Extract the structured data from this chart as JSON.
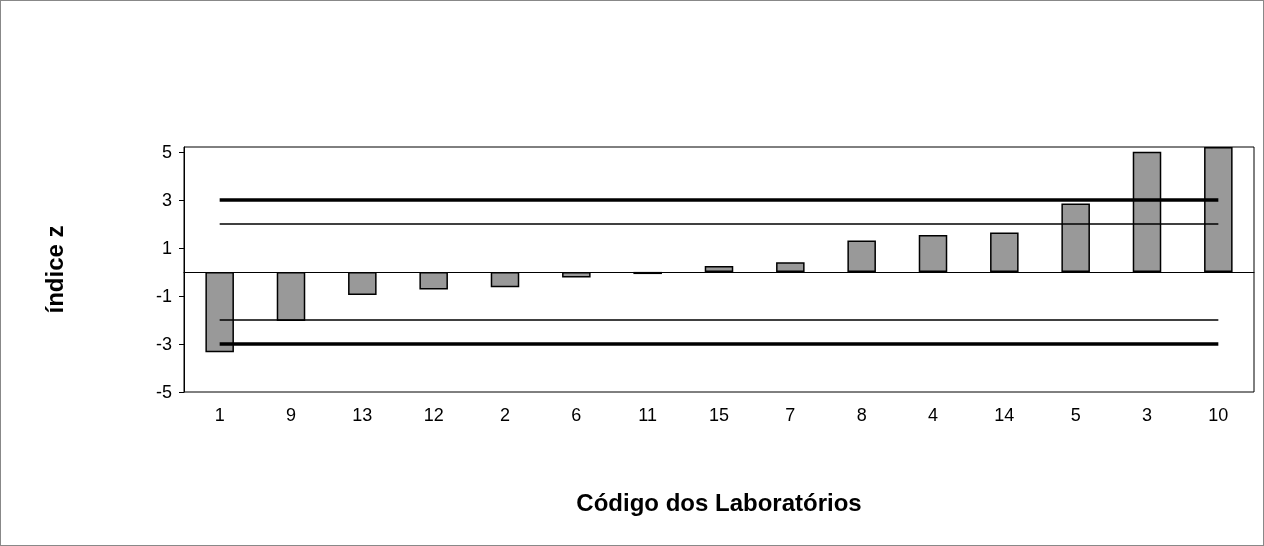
{
  "chart_data": {
    "type": "bar",
    "xlabel": "Código dos Laboratórios",
    "ylabel": "índice z",
    "categories": [
      "1",
      "9",
      "13",
      "12",
      "2",
      "6",
      "11",
      "15",
      "7",
      "8",
      "4",
      "14",
      "5",
      "3",
      "10"
    ],
    "values": [
      -3.34,
      -2.04,
      -0.96,
      -0.73,
      -0.64,
      -0.23,
      -0.09,
      0.25,
      0.4,
      1.31,
      1.54,
      1.64,
      2.85,
      5.0,
      5.2
    ],
    "color": "#999999",
    "ylim": [
      -5,
      5.2
    ],
    "yticks": [
      -5,
      -3,
      -1,
      1,
      3,
      5
    ],
    "grid": false,
    "ref_lines": [
      {
        "axis": "y",
        "value": 3,
        "color": "#000000"
      },
      {
        "axis": "y",
        "value": -3,
        "color": "#000000"
      },
      {
        "axis": "y",
        "value": 2,
        "color": "#000000"
      },
      {
        "axis": "y",
        "value": -2,
        "color": "#000000"
      }
    ]
  }
}
